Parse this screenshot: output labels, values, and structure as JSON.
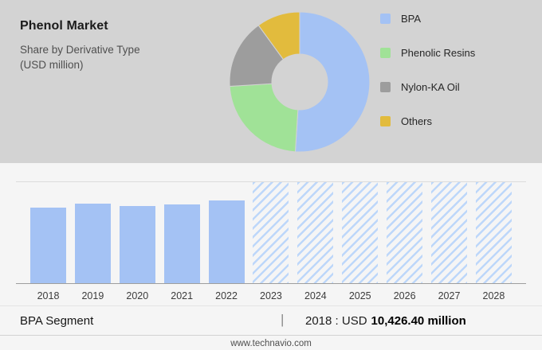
{
  "header": {
    "title": "Phenol Market",
    "subtitle": "Share by Derivative Type",
    "unit": "(USD million)"
  },
  "colors": {
    "panel_bg": "#d3d3d3",
    "bar_blue": "#a4c2f4",
    "hatch_blue": "#bdd7fa",
    "resins_green": "#a0e297",
    "nylon_gray": "#9d9d9d",
    "others_yellow": "#e2bb3d"
  },
  "chart_data": [
    {
      "type": "pie",
      "donut": true,
      "title": "Phenol Market Share by Derivative Type (USD million)",
      "labels": [
        "BPA",
        "Phenolic Resins",
        "Nylon-KA Oil",
        "Others"
      ],
      "values": [
        51,
        23,
        16,
        10
      ],
      "values_unit": "percent, estimated from arc angles (no data labels shown)",
      "colors": [
        "#a4c2f4",
        "#a0e297",
        "#9d9d9d",
        "#e2bb3d"
      ],
      "legend_position": "right"
    },
    {
      "type": "bar",
      "title": "BPA Segment, 2018-2028",
      "categories": [
        "2018",
        "2019",
        "2020",
        "2021",
        "2022",
        "2023",
        "2024",
        "2025",
        "2026",
        "2027",
        "2028"
      ],
      "points": [
        {
          "x": "2018",
          "height_pct": 75,
          "style": "solid"
        },
        {
          "x": "2019",
          "height_pct": 79,
          "style": "solid"
        },
        {
          "x": "2020",
          "height_pct": 76,
          "style": "solid"
        },
        {
          "x": "2021",
          "height_pct": 78,
          "style": "solid"
        },
        {
          "x": "2022",
          "height_pct": 82,
          "style": "solid"
        },
        {
          "x": "2023",
          "height_pct": 100,
          "style": "hatched"
        },
        {
          "x": "2024",
          "height_pct": 100,
          "style": "hatched"
        },
        {
          "x": "2025",
          "height_pct": 100,
          "style": "hatched"
        },
        {
          "x": "2026",
          "height_pct": 100,
          "style": "hatched"
        },
        {
          "x": "2027",
          "height_pct": 100,
          "style": "hatched"
        },
        {
          "x": "2028",
          "height_pct": 100,
          "style": "hatched"
        },
        {
          "note": "solid bars 2018-2022 are historic values, hatched full-height bars 2023-2028 are forecast placeholders; y-axis is unlabeled so heights are percent of plot height"
        }
      ],
      "bar_color": "#a4c2f4",
      "hatch_color": "#bdd7fa",
      "labeled_value": {
        "year": "2018",
        "value": "USD 10,426.40 million"
      }
    }
  ],
  "footer": {
    "segment_label": "BPA Segment",
    "separator": "|",
    "value_prefix": "2018 : USD",
    "value_bold": "10,426.40 million"
  },
  "site": {
    "url": "www.technavio.com"
  }
}
